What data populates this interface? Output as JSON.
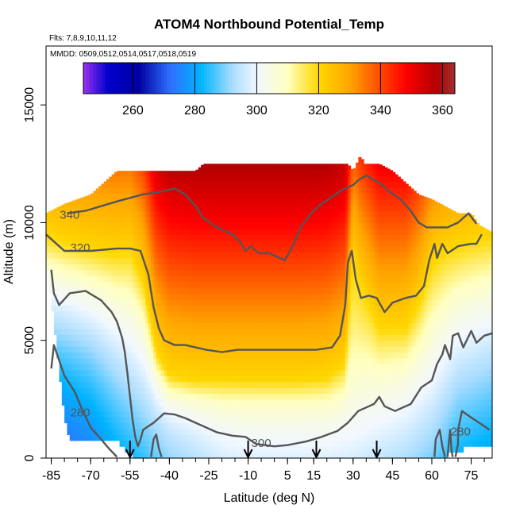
{
  "chart_data": {
    "type": "heatmap",
    "title": "ATOM4 Northbound Potential_Temp",
    "subtitle_flights": "Flts: 7,8,9,10,11,12",
    "subtitle_dates": "MMDD: 0509,0512,0514,0517,0518,0519",
    "xlabel": "Latitude (deg N)",
    "ylabel": "Altitude (m)",
    "xlim": [
      -87,
      83
    ],
    "ylim": [
      0,
      17500
    ],
    "xticks": [
      -85,
      -70,
      -55,
      -40,
      -25,
      -10,
      5,
      15,
      30,
      45,
      60,
      75
    ],
    "xtick_labels": [
      "-85",
      "-70",
      "-55",
      "-40",
      "-25",
      "-10",
      "5",
      "15",
      "30",
      "45",
      "60",
      "75"
    ],
    "xminor_step": 5,
    "yticks": [
      0,
      5000,
      10000,
      15000
    ],
    "ytick_labels": [
      "0",
      "5000",
      "10000",
      "15000"
    ],
    "colorbar": {
      "range": [
        244,
        364
      ],
      "ticks": [
        260,
        280,
        300,
        320,
        340,
        360
      ],
      "tick_labels": [
        "260",
        "280",
        "300",
        "320",
        "340",
        "360"
      ],
      "stops": [
        {
          "v": 244,
          "color": "#9a32f0"
        },
        {
          "v": 252,
          "color": "#0000cd"
        },
        {
          "v": 262,
          "color": "#0000a0"
        },
        {
          "v": 272,
          "color": "#2f6fff"
        },
        {
          "v": 282,
          "color": "#00b4ff"
        },
        {
          "v": 292,
          "color": "#a8dcff"
        },
        {
          "v": 300,
          "color": "#f2f8ff"
        },
        {
          "v": 310,
          "color": "#ffffc0"
        },
        {
          "v": 320,
          "color": "#ffd700"
        },
        {
          "v": 330,
          "color": "#ffa500"
        },
        {
          "v": 338,
          "color": "#ff5a00"
        },
        {
          "v": 348,
          "color": "#ff0000"
        },
        {
          "v": 358,
          "color": "#b40000"
        },
        {
          "v": 364,
          "color": "#a03030"
        }
      ]
    },
    "field_model": {
      "surface_temp_by_lat": [
        [
          -87,
          270
        ],
        [
          -80,
          271
        ],
        [
          -70,
          274
        ],
        [
          -60,
          280
        ],
        [
          -50,
          285
        ],
        [
          -40,
          291
        ],
        [
          -30,
          294
        ],
        [
          -20,
          297
        ],
        [
          -10,
          298
        ],
        [
          0,
          298
        ],
        [
          10,
          298
        ],
        [
          20,
          298
        ],
        [
          30,
          297
        ],
        [
          40,
          295
        ],
        [
          50,
          293
        ],
        [
          60,
          289
        ],
        [
          70,
          282
        ],
        [
          83,
          279
        ]
      ],
      "lapse_k_per_km": 3.2,
      "tropopause_m_by_lat": [
        [
          -87,
          9500
        ],
        [
          -80,
          9200
        ],
        [
          -70,
          8900
        ],
        [
          -60,
          8700
        ],
        [
          -55,
          8800
        ],
        [
          -50,
          7500
        ],
        [
          -45,
          4500
        ],
        [
          -40,
          3500
        ],
        [
          -30,
          3300
        ],
        [
          -20,
          3300
        ],
        [
          -10,
          3300
        ],
        [
          0,
          3300
        ],
        [
          10,
          3300
        ],
        [
          20,
          3400
        ],
        [
          27,
          4000
        ],
        [
          30,
          8500
        ],
        [
          33,
          7300
        ],
        [
          40,
          5500
        ],
        [
          50,
          5500
        ],
        [
          55,
          6500
        ],
        [
          60,
          8200
        ],
        [
          65,
          8800
        ],
        [
          75,
          9200
        ],
        [
          83,
          9400
        ]
      ],
      "stratosphere_base_k": 320,
      "stratosphere_k_per_km": 4.2,
      "sonde_max_alt_m": 12000,
      "cell_lat_deg": 1,
      "cell_alt_m": 250
    },
    "coverage_top_m": [
      [
        -87,
        10400
      ],
      [
        -80,
        10800
      ],
      [
        -75,
        11000
      ],
      [
        -70,
        11200
      ],
      [
        -62,
        12000
      ],
      [
        -60,
        12200
      ],
      [
        -40,
        12200
      ],
      [
        -30,
        12200
      ],
      [
        -27,
        12500
      ],
      [
        -10,
        12500
      ],
      [
        0,
        12500
      ],
      [
        20,
        12500
      ],
      [
        28,
        12500
      ],
      [
        30,
        12200
      ],
      [
        33,
        12900
      ],
      [
        34,
        12500
      ],
      [
        40,
        12500
      ],
      [
        45,
        12200
      ],
      [
        50,
        11700
      ],
      [
        55,
        11200
      ],
      [
        60,
        11000
      ],
      [
        65,
        10700
      ],
      [
        70,
        10400
      ],
      [
        75,
        10400
      ],
      [
        78,
        9900
      ],
      [
        83,
        9600
      ]
    ],
    "coverage_bottom_m": [
      [
        -87,
        8600
      ],
      [
        -84,
        5800
      ],
      [
        -80,
        1800
      ],
      [
        -78,
        1000
      ],
      [
        -60,
        800
      ],
      [
        -55,
        300
      ],
      [
        -50,
        0
      ],
      [
        60,
        0
      ],
      [
        62,
        0
      ],
      [
        65,
        200
      ],
      [
        72,
        500
      ],
      [
        83,
        700
      ]
    ],
    "contours": [
      {
        "level": 340,
        "label": "340",
        "label_at": [
          -78,
          10300
        ],
        "points": [
          [
            -79,
            10400
          ],
          [
            -72,
            10500
          ],
          [
            -66,
            10700
          ],
          [
            -60,
            10900
          ],
          [
            -50,
            11200
          ],
          [
            -44,
            11300
          ],
          [
            -38,
            11450
          ],
          [
            -34,
            11200
          ],
          [
            -30,
            10700
          ],
          [
            -27,
            10200
          ],
          [
            -22,
            9800
          ],
          [
            -16,
            9500
          ],
          [
            -13,
            9200
          ],
          [
            -11,
            8800
          ],
          [
            -9,
            9000
          ],
          [
            -6,
            8700
          ],
          [
            -2,
            8700
          ],
          [
            0,
            8600
          ],
          [
            4,
            8400
          ],
          [
            7,
            9000
          ],
          [
            10,
            9800
          ],
          [
            14,
            10400
          ],
          [
            18,
            10800
          ],
          [
            22,
            11100
          ],
          [
            26,
            11400
          ],
          [
            30,
            11600
          ],
          [
            32,
            11800
          ],
          [
            35,
            12000
          ],
          [
            40,
            11700
          ],
          [
            44,
            11300
          ],
          [
            48,
            11000
          ],
          [
            52,
            10500
          ],
          [
            55,
            10000
          ],
          [
            58,
            9800
          ],
          [
            62,
            9800
          ],
          [
            66,
            9800
          ],
          [
            70,
            10000
          ],
          [
            74,
            10400
          ],
          [
            77,
            9950
          ]
        ]
      },
      {
        "level": 320,
        "label": "320",
        "label_at": [
          -74,
          8900
        ],
        "points": [
          [
            -87,
            9500
          ],
          [
            -84,
            9200
          ],
          [
            -80,
            8800
          ],
          [
            -76,
            8800
          ],
          [
            -70,
            8800
          ],
          [
            -60,
            8900
          ],
          [
            -55,
            8900
          ],
          [
            -51,
            8800
          ],
          [
            -48,
            7800
          ],
          [
            -46,
            6400
          ],
          [
            -44,
            5500
          ],
          [
            -42,
            5000
          ],
          [
            -38,
            4800
          ],
          [
            -34,
            4800
          ],
          [
            -30,
            4700
          ],
          [
            -26,
            4600
          ],
          [
            -20,
            4500
          ],
          [
            -14,
            4600
          ],
          [
            -8,
            4600
          ],
          [
            -2,
            4600
          ],
          [
            4,
            4600
          ],
          [
            10,
            4600
          ],
          [
            16,
            4600
          ],
          [
            22,
            4700
          ],
          [
            25,
            5200
          ],
          [
            27,
            6500
          ],
          [
            28,
            8300
          ],
          [
            29.5,
            8800
          ],
          [
            31,
            7600
          ],
          [
            33,
            6800
          ],
          [
            36,
            6900
          ],
          [
            39,
            6800
          ],
          [
            42,
            6200
          ],
          [
            45,
            6600
          ],
          [
            50,
            6800
          ],
          [
            54,
            6900
          ],
          [
            57,
            7300
          ],
          [
            59,
            8400
          ],
          [
            61,
            9100
          ],
          [
            62,
            8500
          ],
          [
            64,
            9100
          ],
          [
            66,
            8700
          ],
          [
            70,
            9000
          ],
          [
            75,
            9100
          ],
          [
            77,
            9100
          ],
          [
            79,
            9500
          ]
        ]
      },
      {
        "level": 300,
        "label": "300",
        "label_at": [
          -5,
          600
        ],
        "points": [
          [
            -85,
            8000
          ],
          [
            -84,
            7000
          ],
          [
            -82,
            6500
          ],
          [
            -78,
            7000
          ],
          [
            -72,
            7100
          ],
          [
            -66,
            6700
          ],
          [
            -62,
            6200
          ],
          [
            -60,
            5800
          ],
          [
            -58,
            5100
          ],
          [
            -57,
            4500
          ],
          [
            -56,
            3600
          ],
          [
            -55,
            2600
          ],
          [
            -54,
            1600
          ],
          [
            -53,
            900
          ],
          [
            -52,
            500
          ],
          [
            -51,
            800
          ],
          [
            -50,
            1200
          ],
          [
            -46,
            1500
          ],
          [
            -42,
            1900
          ],
          [
            -38,
            1850
          ],
          [
            -34,
            1700
          ],
          [
            -28,
            1400
          ],
          [
            -22,
            1100
          ],
          [
            -16,
            950
          ],
          [
            -11,
            900
          ],
          [
            -9,
            750
          ],
          [
            -7,
            600
          ],
          [
            0,
            500
          ],
          [
            5,
            550
          ],
          [
            12,
            700
          ],
          [
            18,
            900
          ],
          [
            24,
            1150
          ],
          [
            28,
            1500
          ],
          [
            32,
            2000
          ],
          [
            38,
            2300
          ],
          [
            40,
            2600
          ],
          [
            42,
            2200
          ],
          [
            46,
            2000
          ],
          [
            52,
            2300
          ],
          [
            56,
            3000
          ],
          [
            60,
            3300
          ],
          [
            62,
            4000
          ],
          [
            64,
            4400
          ],
          [
            65,
            4800
          ],
          [
            67,
            4200
          ],
          [
            68,
            5200
          ],
          [
            70,
            5300
          ],
          [
            72,
            4700
          ],
          [
            75,
            5400
          ],
          [
            77,
            4900
          ],
          [
            80,
            5200
          ],
          [
            83,
            5300
          ]
        ]
      },
      {
        "level": 280,
        "label": "280",
        "label_at": [
          -74,
          1900
        ],
        "points": [
          [
            -85,
            3800
          ],
          [
            -84,
            4800
          ],
          [
            -80,
            3500
          ],
          [
            -76,
            2800
          ],
          [
            -73,
            2000
          ],
          [
            -70,
            1300
          ],
          [
            -66,
            800
          ],
          [
            -63,
            400
          ],
          [
            -60,
            50
          ]
        ]
      },
      {
        "level": 280,
        "label": "280",
        "label_at": [
          71,
          1100
        ],
        "points": [
          [
            69,
            50
          ],
          [
            70,
            600
          ],
          [
            70,
            1200
          ],
          [
            71.5,
            2000
          ],
          [
            74,
            1800
          ],
          [
            78,
            1500
          ],
          [
            82,
            1200
          ]
        ]
      },
      {
        "level": 280,
        "label": "",
        "label_at": null,
        "points": [
          [
            61,
            50
          ],
          [
            61.5,
            800
          ],
          [
            63,
            1200
          ],
          [
            64,
            500
          ],
          [
            65,
            50
          ]
        ]
      },
      {
        "level": 280,
        "label": "",
        "label_at": null,
        "points": [
          [
            66,
            50
          ],
          [
            66.5,
            700
          ],
          [
            67,
            1200
          ],
          [
            67.5,
            300
          ],
          [
            68,
            50
          ]
        ]
      },
      {
        "level": 280,
        "label": "",
        "label_at": null,
        "points": [
          [
            -47,
            50
          ],
          [
            -46,
            800
          ],
          [
            -45,
            1000
          ],
          [
            -44,
            400
          ],
          [
            -43,
            50
          ]
        ]
      }
    ],
    "arrows_lat": [
      -55,
      -10,
      16,
      39
    ]
  }
}
